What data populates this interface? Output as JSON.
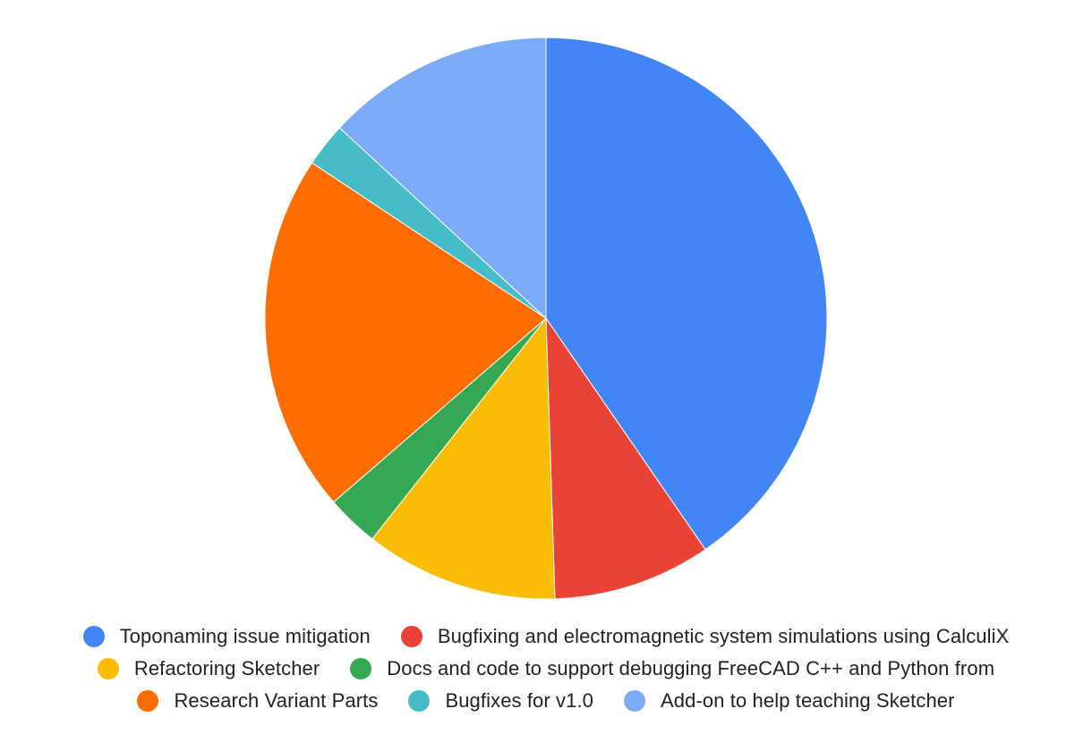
{
  "chart_data": {
    "type": "pie",
    "title": "",
    "start_angle_deg": 0,
    "direction": "clockwise",
    "legend_position": "bottom",
    "slices": [
      {
        "label": "Toponaming issue mitigation",
        "value": 40,
        "color": "#4285f4"
      },
      {
        "label": "Bugfixing and electromagnetic system simulations using CalculiX",
        "value": 9,
        "color": "#ea4335"
      },
      {
        "label": "Refactoring Sketcher",
        "value": 11,
        "color": "#fbbc04"
      },
      {
        "label": "Docs and code to support debugging FreeCAD C++ and Python from",
        "value": 3,
        "color": "#34a853"
      },
      {
        "label": "Research Variant Parts",
        "value": 20.5,
        "color": "#ff6d01"
      },
      {
        "label": "Bugfixes for v1.0",
        "value": 2.5,
        "color": "#46bdc6"
      },
      {
        "label": "Add-on to help teaching Sketcher",
        "value": 13,
        "color": "#7baaf7"
      }
    ]
  }
}
